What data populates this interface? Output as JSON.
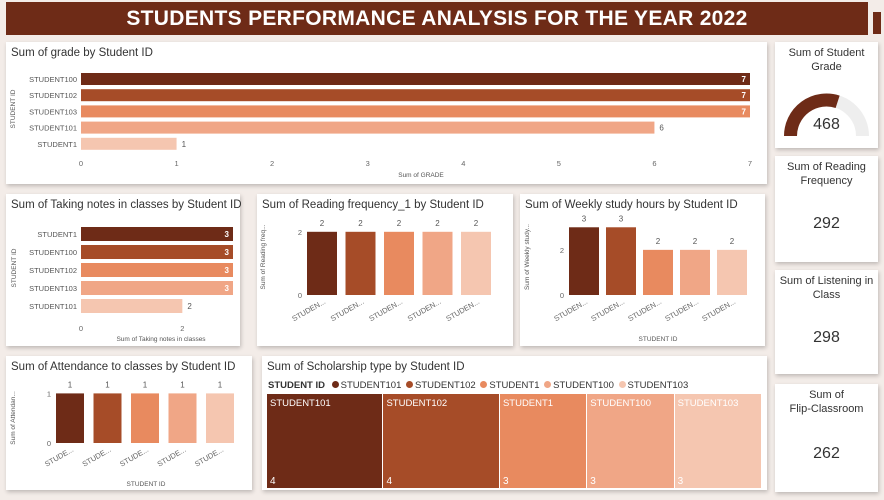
{
  "header": {
    "title": "STUDENTS PERFORMANCE ANALYSIS FOR THE YEAR 2022"
  },
  "colors": {
    "c1": "#6e2b17",
    "c2": "#a64c28",
    "c3": "#e88a5f",
    "c4": "#f0a686",
    "c5": "#f5c6b0",
    "gauge_bg": "#eeeeee"
  },
  "grade_chart": {
    "title": "Sum of grade by Student ID",
    "xlabel": "Sum of GRADE",
    "ylabel": "STUDENT ID",
    "ticks": [
      "0",
      "1",
      "2",
      "3",
      "4",
      "5",
      "6",
      "7"
    ],
    "xmax": 7
  },
  "notes_chart": {
    "title": "Sum of Taking notes in classes by Student ID",
    "xlabel": "Sum of Taking notes in classes",
    "ylabel": "STUDENT ID",
    "ticks": [
      "0",
      "2"
    ],
    "xmax": 3
  },
  "reading_chart": {
    "title": "Sum of Reading frequency_1 by Student ID",
    "ylabel": "Sum of Reading freq...",
    "xlabels": [
      "STUDEN...",
      "STUDEN...",
      "STUDEN...",
      "STUDEN...",
      "STUDEN..."
    ],
    "ticks": [
      "0",
      "2"
    ],
    "ymax": 2.5
  },
  "weekly_chart": {
    "title": "Sum of Weekly study hours by Student ID",
    "ylabel": "Sum of Weekly study...",
    "xlabel": "STUDENT ID",
    "xlabels": [
      "STUDEN...",
      "STUDEN...",
      "STUDEN...",
      "STUDEN...",
      "STUDEN..."
    ],
    "ticks": [
      "0",
      "2"
    ],
    "ymax": 3.5
  },
  "attendance_chart": {
    "title": "Sum of Attendance to classes by Student ID",
    "ylabel": "Sum of Attendan...",
    "xlabel": "STUDENT ID",
    "xlabels": [
      "STUDE...",
      "STUDE...",
      "STUDE...",
      "STUDE...",
      "STUDE..."
    ],
    "ticks": [
      "0",
      "1"
    ],
    "ymax": 1.25
  },
  "scholarship": {
    "title": "Sum of Scholarship type by Student ID",
    "legend_title": "STUDENT ID",
    "legend_items": [
      "STUDENT101",
      "STUDENT102",
      "STUDENT1",
      "STUDENT100",
      "STUDENT103"
    ]
  },
  "kpis": {
    "grade": {
      "title": "Sum of Student Grade",
      "value": "468",
      "gauge_fraction": 0.6
    },
    "reading": {
      "title": "Sum of Reading Frequency",
      "value": "292"
    },
    "listening": {
      "title": "Sum of Listening in Class",
      "value": "298"
    },
    "flip_line1": "Sum of",
    "flip_line2": "Flip-Classroom",
    "flip_value": "262"
  },
  "chart_data": [
    {
      "type": "bar",
      "orientation": "horizontal",
      "title": "Sum of grade by Student ID",
      "xlabel": "Sum of GRADE",
      "ylabel": "STUDENT ID",
      "categories": [
        "STUDENT100",
        "STUDENT102",
        "STUDENT103",
        "STUDENT101",
        "STUDENT1"
      ],
      "values": [
        7,
        7,
        7,
        6,
        1
      ],
      "labels": [
        "7",
        "7",
        "7",
        "6",
        "1"
      ],
      "xlim": [
        0,
        7
      ]
    },
    {
      "type": "bar",
      "orientation": "horizontal",
      "title": "Sum of Taking notes in classes by Student ID",
      "xlabel": "Sum of Taking notes in classes",
      "ylabel": "STUDENT ID",
      "categories": [
        "STUDENT1",
        "STUDENT100",
        "STUDENT102",
        "STUDENT103",
        "STUDENT101"
      ],
      "values": [
        3,
        3,
        3,
        3,
        2
      ],
      "labels": [
        "3",
        "3",
        "3",
        "3",
        "2"
      ]
    },
    {
      "type": "bar",
      "title": "Sum of Reading frequency_1 by Student ID",
      "values": [
        2,
        2,
        2,
        2,
        2
      ],
      "labels": [
        "2",
        "2",
        "2",
        "2",
        "2"
      ]
    },
    {
      "type": "bar",
      "title": "Sum of Weekly study hours by Student ID",
      "values": [
        3,
        3,
        2,
        2,
        2
      ],
      "labels": [
        "3",
        "3",
        "2",
        "2",
        "2"
      ]
    },
    {
      "type": "bar",
      "title": "Sum of Attendance to classes by Student ID",
      "values": [
        1,
        1,
        1,
        1,
        1
      ],
      "labels": [
        "1",
        "1",
        "1",
        "1",
        "1"
      ]
    },
    {
      "type": "treemap",
      "title": "Sum of Scholarship type by Student ID",
      "categories": [
        "STUDENT101",
        "STUDENT102",
        "STUDENT1",
        "STUDENT100",
        "STUDENT103"
      ],
      "values": [
        4,
        4,
        3,
        3,
        3
      ],
      "labels": [
        "4",
        "4",
        "3",
        "3",
        "3"
      ]
    }
  ]
}
